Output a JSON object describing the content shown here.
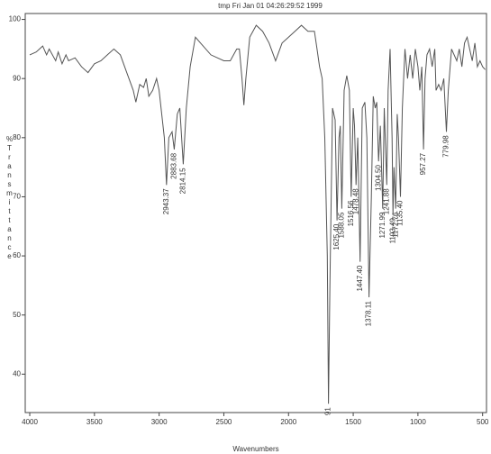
{
  "chart_data": {
    "type": "line",
    "title": "tmp  Fri Jan 01 04:26:29:52 1999",
    "xlabel": "Wavenumbers",
    "ylabel": "%Transmittance",
    "color": "#555555",
    "xlim": [
      4035,
      470
    ],
    "ylim": [
      33.5,
      101
    ],
    "xticks": [
      4000,
      3500,
      3000,
      2500,
      2000,
      1500,
      1000,
      500
    ],
    "yticks": [
      40,
      50,
      60,
      70,
      80,
      90,
      100
    ],
    "x": [
      4000,
      3950,
      3900,
      3870,
      3850,
      3800,
      3780,
      3750,
      3720,
      3700,
      3650,
      3600,
      3550,
      3500,
      3450,
      3400,
      3350,
      3300,
      3250,
      3200,
      3180,
      3150,
      3120,
      3100,
      3080,
      3050,
      3020,
      3000,
      2980,
      2960,
      2943,
      2925,
      2900,
      2883,
      2860,
      2840,
      2814,
      2790,
      2760,
      2720,
      2680,
      2600,
      2500,
      2450,
      2400,
      2380,
      2360,
      2345,
      2330,
      2300,
      2250,
      2200,
      2150,
      2100,
      2050,
      2000,
      1950,
      1900,
      1850,
      1800,
      1780,
      1760,
      1740,
      1720,
      1700,
      1691,
      1680,
      1660,
      1640,
      1625,
      1610,
      1600,
      1588,
      1570,
      1550,
      1530,
      1516,
      1500,
      1490,
      1478,
      1465,
      1447,
      1430,
      1410,
      1395,
      1378,
      1360,
      1345,
      1330,
      1318,
      1304,
      1290,
      1272,
      1260,
      1241,
      1230,
      1215,
      1200,
      1193,
      1185,
      1172,
      1160,
      1150,
      1135,
      1120,
      1100,
      1080,
      1060,
      1040,
      1020,
      1000,
      985,
      970,
      957,
      945,
      930,
      910,
      890,
      870,
      860,
      840,
      820,
      800,
      780,
      765,
      740,
      720,
      700,
      680,
      660,
      640,
      620,
      600,
      580,
      560,
      540,
      520,
      500,
      480
    ],
    "values": [
      94,
      94.5,
      95.5,
      94,
      95,
      93,
      94.5,
      92.5,
      94,
      93,
      93.5,
      92,
      91,
      92.5,
      93,
      94,
      95,
      94,
      91,
      88,
      86,
      89,
      88.5,
      90,
      87,
      88,
      90,
      88,
      84,
      80,
      72,
      80,
      81,
      78,
      84,
      85,
      75.5,
      85,
      92,
      97,
      96,
      94,
      93,
      93,
      95,
      95,
      90,
      85.5,
      90,
      97,
      99,
      98,
      96,
      93,
      96,
      97,
      98,
      99,
      98,
      98,
      95,
      92,
      90,
      80,
      60,
      35,
      55,
      85,
      83,
      66,
      80,
      82,
      68,
      88,
      90.5,
      88,
      70,
      85,
      82,
      72,
      80,
      59,
      85,
      86,
      80,
      53,
      70,
      87,
      85,
      86,
      76,
      82,
      68,
      85,
      72,
      88,
      95,
      80,
      67,
      75,
      68,
      84,
      80,
      70,
      85,
      95,
      90,
      94,
      90,
      95,
      92,
      88,
      92,
      78,
      90,
      94,
      95,
      92,
      95,
      88,
      89,
      88,
      90,
      81,
      88,
      95,
      94,
      93,
      95,
      92,
      96,
      97,
      95,
      93,
      96,
      92,
      93,
      92,
      91.5
    ],
    "annotations": [
      {
        "text": "2943.37",
        "x": 2943
      },
      {
        "text": "2883.68",
        "x": 2883
      },
      {
        "text": "2814.15",
        "x": 2814
      },
      {
        "text": "91",
        "x": 1691
      },
      {
        "text": "1625.40",
        "x": 1625
      },
      {
        "text": "1588.05",
        "x": 1588
      },
      {
        "text": "1516.56",
        "x": 1516
      },
      {
        "text": "1478.48",
        "x": 1478
      },
      {
        "text": "1447.40",
        "x": 1447
      },
      {
        "text": "1378.11",
        "x": 1378
      },
      {
        "text": "1304.50",
        "x": 1304
      },
      {
        "text": "1271.99",
        "x": 1272
      },
      {
        "text": "1241.88",
        "x": 1241
      },
      {
        "text": "1193.49",
        "x": 1193
      },
      {
        "text": "1172.76",
        "x": 1172
      },
      {
        "text": "1135.40",
        "x": 1135
      },
      {
        "text": "957.27",
        "x": 957
      },
      {
        "text": "779.98",
        "x": 780
      }
    ]
  }
}
